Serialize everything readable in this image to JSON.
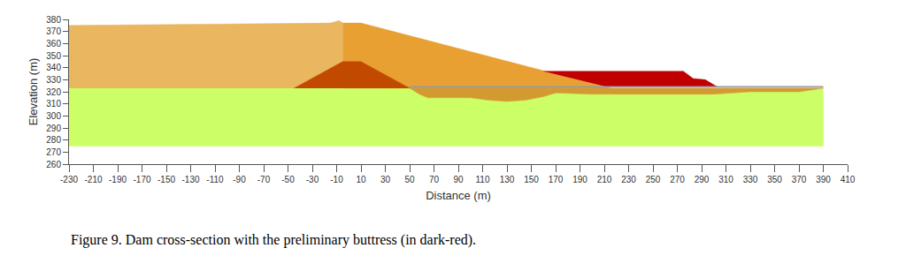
{
  "chart_data": {
    "type": "area",
    "caption": "Figure 9. Dam cross-section with the preliminary buttress (in dark-red).",
    "x_label": "Distance (m)",
    "y_label": "Elevation (m)",
    "xlim": [
      -230,
      410
    ],
    "ylim": [
      260,
      380
    ],
    "xticks": [
      -230,
      -210,
      -190,
      -170,
      -150,
      -130,
      -110,
      -90,
      -70,
      -50,
      -30,
      -10,
      10,
      30,
      50,
      70,
      90,
      110,
      130,
      150,
      170,
      190,
      210,
      230,
      250,
      270,
      290,
      310,
      330,
      350,
      370,
      390,
      410
    ],
    "yticks": [
      260,
      270,
      280,
      290,
      300,
      310,
      320,
      330,
      340,
      350,
      360,
      370,
      380
    ],
    "grid": false,
    "series": [
      {
        "type": "area",
        "color": "#ccff66",
        "x": [
          -230,
          50,
          58,
          65,
          100,
          115,
          130,
          145,
          160,
          170,
          200,
          250,
          300,
          315,
          330,
          370,
          390,
          390,
          -230
        ],
        "values": [
          323,
          323,
          318,
          315,
          315,
          313,
          312,
          313,
          316,
          319,
          318,
          318,
          318,
          319,
          320,
          320,
          323,
          275,
          275
        ]
      },
      {
        "type": "area",
        "color": "#d39a30",
        "x": [
          50,
          58,
          65,
          100,
          115,
          130,
          145,
          160,
          170,
          200,
          250,
          300,
          315,
          330,
          370,
          390
        ],
        "values": [
          323,
          318,
          315,
          315,
          313,
          312,
          313,
          316,
          319,
          318,
          318,
          318,
          319,
          320,
          320,
          323
        ]
      },
      {
        "type": "area",
        "color": "#eab660",
        "x": [
          -230,
          -230,
          -15,
          -8,
          -5,
          -5
        ],
        "values": [
          323,
          375,
          377,
          379,
          377,
          323
        ]
      },
      {
        "type": "area",
        "color": "#e8a032",
        "x": [
          -5,
          10,
          215,
          -5
        ],
        "values": [
          377,
          377,
          323,
          323
        ]
      },
      {
        "type": "area",
        "color": "#c24a00",
        "x": [
          -45,
          -5,
          10,
          50
        ],
        "values": [
          323,
          345,
          345,
          323
        ]
      },
      {
        "type": "area",
        "color": "#c00000",
        "x": [
          160,
          275,
          283,
          293,
          303,
          212
        ],
        "values": [
          337,
          337,
          331,
          330,
          324,
          324
        ]
      },
      {
        "type": "line",
        "color": "#999999",
        "x": [
          50,
          390
        ],
        "values": [
          324,
          324
        ]
      }
    ]
  }
}
